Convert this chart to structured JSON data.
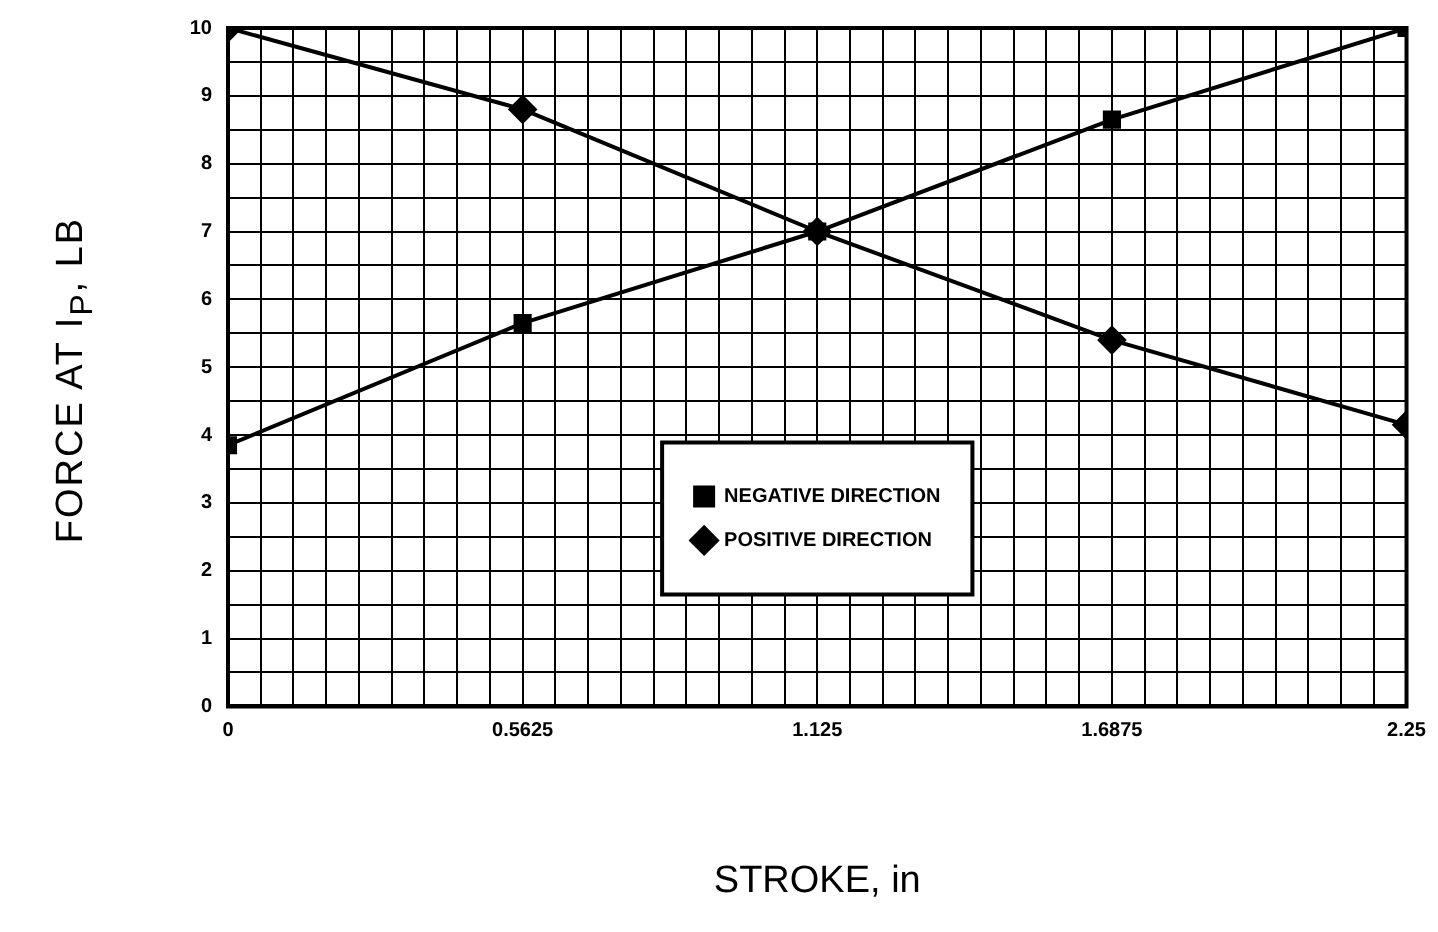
{
  "chart_data": {
    "type": "line",
    "xlabel": "STROKE, in",
    "ylabel": "FORCE AT I$_{P}$, LB",
    "xlim": [
      0,
      2.25
    ],
    "ylim": [
      0,
      10
    ],
    "xticks": [
      {
        "value": 0,
        "label": "0"
      },
      {
        "value": 0.0625,
        "label": null
      },
      {
        "value": 0.125,
        "label": null
      },
      {
        "value": 0.1875,
        "label": null
      },
      {
        "value": 0.25,
        "label": null
      },
      {
        "value": 0.3125,
        "label": null
      },
      {
        "value": 0.375,
        "label": null
      },
      {
        "value": 0.4375,
        "label": null
      },
      {
        "value": 0.5,
        "label": null
      },
      {
        "value": 0.5625,
        "label": "0.5625"
      },
      {
        "value": 0.625,
        "label": null
      },
      {
        "value": 0.6875,
        "label": null
      },
      {
        "value": 0.75,
        "label": null
      },
      {
        "value": 0.8125,
        "label": null
      },
      {
        "value": 0.875,
        "label": null
      },
      {
        "value": 0.9375,
        "label": null
      },
      {
        "value": 1,
        "label": null
      },
      {
        "value": 1.0625,
        "label": null
      },
      {
        "value": 1.125,
        "label": "1.125"
      },
      {
        "value": 1.1875,
        "label": null
      },
      {
        "value": 1.25,
        "label": null
      },
      {
        "value": 1.3125,
        "label": null
      },
      {
        "value": 1.375,
        "label": null
      },
      {
        "value": 1.4375,
        "label": null
      },
      {
        "value": 1.5,
        "label": null
      },
      {
        "value": 1.5625,
        "label": null
      },
      {
        "value": 1.625,
        "label": null
      },
      {
        "value": 1.6875,
        "label": "1.6875"
      },
      {
        "value": 1.75,
        "label": null
      },
      {
        "value": 1.8125,
        "label": null
      },
      {
        "value": 1.875,
        "label": null
      },
      {
        "value": 1.9375,
        "label": null
      },
      {
        "value": 2,
        "label": null
      },
      {
        "value": 2.0625,
        "label": null
      },
      {
        "value": 2.125,
        "label": null
      },
      {
        "value": 2.1875,
        "label": null
      },
      {
        "value": 2.25,
        "label": "2.25"
      }
    ],
    "yticks": [
      0,
      {
        "value": 0.5,
        "label": null
      },
      1,
      {
        "value": 1.5,
        "label": null
      },
      2,
      {
        "value": 2.5,
        "label": null
      },
      3,
      {
        "value": 3.5,
        "label": null
      },
      4,
      {
        "value": 4.5,
        "label": null
      },
      5,
      {
        "value": 5.5,
        "label": null
      },
      6,
      {
        "value": 6.5,
        "label": null
      },
      7,
      {
        "value": 7.5,
        "label": null
      },
      8,
      {
        "value": 8.5,
        "label": null
      },
      9,
      {
        "value": 9.5,
        "label": null
      },
      10
    ],
    "grid": true,
    "legend": "bottom",
    "line_style": "solid",
    "x": [
      0,
      0.5625,
      1.125,
      1.6875,
      2.25
    ],
    "series": [
      {
        "name": "POSITIVE DIRECTION",
        "color": "#000000",
        "marker": "diamond",
        "values": [
          10,
          8.8,
          7,
          5.4,
          4.15
        ]
      },
      {
        "name": "NEGATIVE DIRECTION",
        "color": "#000000",
        "marker": "square",
        "values": [
          3.85,
          5.65,
          7,
          8.65,
          10
        ]
      }
    ]
  }
}
